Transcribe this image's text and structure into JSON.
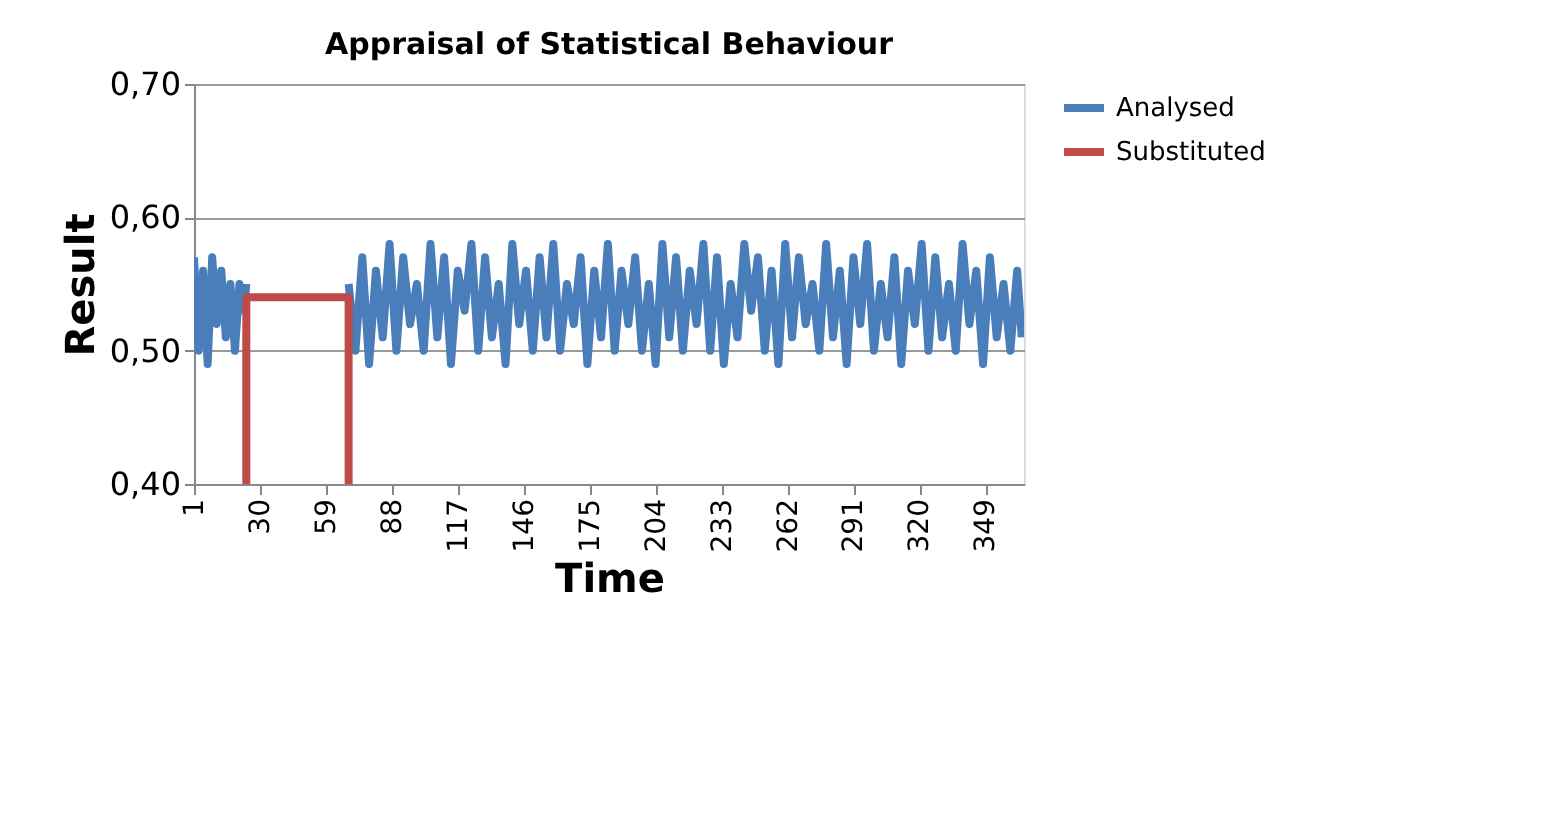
{
  "chart_data": {
    "type": "line",
    "title": "Appraisal of Statistical Behaviour",
    "xlabel": "Time",
    "ylabel": "Result",
    "xlim": [
      1,
      366
    ],
    "xticks": [
      1,
      30,
      59,
      88,
      117,
      146,
      175,
      204,
      233,
      262,
      291,
      320,
      349
    ],
    "ylim": [
      0.4,
      0.7
    ],
    "yticks": [
      {
        "value": 0.4,
        "label": "0,40"
      },
      {
        "value": 0.5,
        "label": "0,50"
      },
      {
        "value": 0.6,
        "label": "0,60"
      },
      {
        "value": 0.7,
        "label": "0,70"
      }
    ],
    "grid": "y",
    "legend": "right",
    "marker": "none",
    "line_style": "solid",
    "series": [
      {
        "name": "Analysed",
        "color": "#4a7ebb",
        "x": [
          1,
          3,
          5,
          7,
          9,
          11,
          13,
          15,
          17,
          19,
          21,
          23,
          24,
          46,
          69,
          72,
          75,
          78,
          81,
          84,
          87,
          90,
          93,
          96,
          99,
          102,
          105,
          108,
          111,
          114,
          117,
          120,
          123,
          126,
          129,
          132,
          135,
          138,
          141,
          144,
          147,
          150,
          153,
          156,
          159,
          162,
          165,
          168,
          171,
          174,
          177,
          180,
          183,
          186,
          189,
          192,
          195,
          198,
          201,
          204,
          207,
          210,
          213,
          216,
          219,
          222,
          225,
          228,
          231,
          234,
          237,
          240,
          243,
          246,
          249,
          252,
          255,
          258,
          261,
          264,
          267,
          270,
          273,
          276,
          279,
          282,
          285,
          288,
          291,
          294,
          297,
          300,
          303,
          306,
          309,
          312,
          315,
          318,
          321,
          324,
          327,
          330,
          333,
          336,
          339,
          342,
          345,
          348,
          351,
          354,
          357,
          360,
          363,
          365
        ],
        "values": [
          0.57,
          0.5,
          0.56,
          0.49,
          0.57,
          0.52,
          0.56,
          0.51,
          0.55,
          0.5,
          0.55,
          0.53,
          0.55,
          null,
          0.55,
          0.5,
          0.57,
          0.49,
          0.56,
          0.51,
          0.58,
          0.5,
          0.57,
          0.52,
          0.55,
          0.5,
          0.58,
          0.51,
          0.57,
          0.49,
          0.56,
          0.53,
          0.58,
          0.5,
          0.57,
          0.51,
          0.55,
          0.49,
          0.58,
          0.52,
          0.56,
          0.5,
          0.57,
          0.51,
          0.58,
          0.5,
          0.55,
          0.52,
          0.57,
          0.49,
          0.56,
          0.51,
          0.58,
          0.5,
          0.56,
          0.52,
          0.57,
          0.5,
          0.55,
          0.49,
          0.58,
          0.51,
          0.57,
          0.5,
          0.56,
          0.52,
          0.58,
          0.5,
          0.57,
          0.49,
          0.55,
          0.51,
          0.58,
          0.53,
          0.57,
          0.5,
          0.56,
          0.49,
          0.58,
          0.51,
          0.57,
          0.52,
          0.55,
          0.5,
          0.58,
          0.51,
          0.56,
          0.49,
          0.57,
          0.52,
          0.58,
          0.5,
          0.55,
          0.51,
          0.57,
          0.49,
          0.56,
          0.52,
          0.58,
          0.5,
          0.57,
          0.51,
          0.55,
          0.5,
          0.58,
          0.52,
          0.56,
          0.49,
          0.57,
          0.51,
          0.55,
          0.5,
          0.56,
          0.51
        ]
      },
      {
        "name": "Substituted",
        "color": "#be4b48",
        "x": [
          24,
          24,
          69,
          69
        ],
        "values": [
          0.4,
          0.54,
          0.54,
          0.4
        ]
      }
    ]
  }
}
